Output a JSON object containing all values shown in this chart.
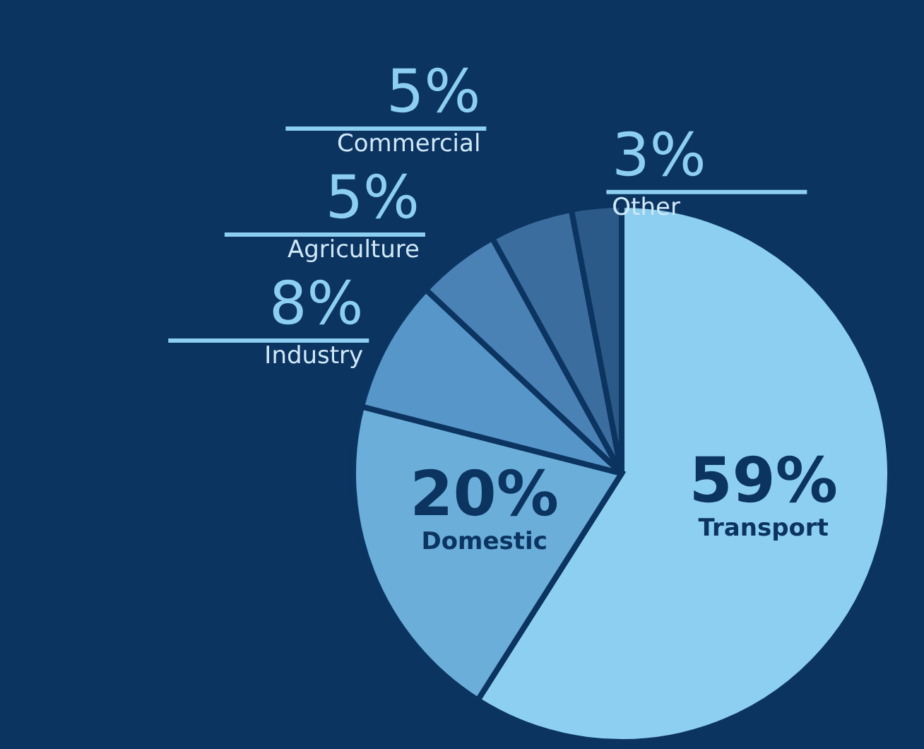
{
  "chart_data": {
    "type": "pie",
    "categories": [
      "Transport",
      "Domestic",
      "Industry",
      "Agriculture",
      "Commercial",
      "Other"
    ],
    "values": [
      59,
      20,
      8,
      5,
      5,
      3
    ],
    "colors": [
      "#8dcff0",
      "#6aaed9",
      "#5796c8",
      "#4a82b6",
      "#3b6e9f",
      "#2c5a88"
    ],
    "value_labels": [
      "59%",
      "20%",
      "8%",
      "5%",
      "5%",
      "3%"
    ]
  }
}
